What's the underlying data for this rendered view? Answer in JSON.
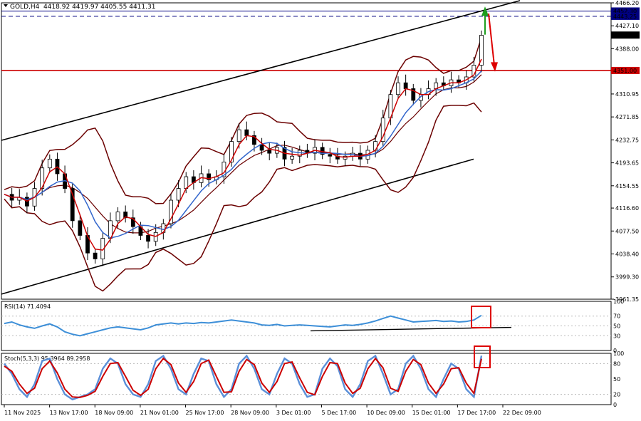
{
  "header": {
    "symbol": "GOLD,H4",
    "ohlc": "4418.92 4419.97 4405.55 4411.31"
  },
  "colors": {
    "candle": "#000000",
    "ma_fast": "#cc0000",
    "ma_slow": "#3366cc",
    "bollinger": "#6b0000",
    "level": "#cc0000",
    "hline": "#000080",
    "rsi": "#3d8fd8",
    "stoch_main": "#5a8fd8",
    "stoch_signal": "#cc0000",
    "highlight": "#dd0000"
  },
  "chart_data": [
    {
      "type": "line",
      "name": "price",
      "y_ticks": [
        "4466.20",
        "4427.10",
        "4388.00",
        "4310.95",
        "4271.85",
        "4232.75",
        "4193.65",
        "4154.55",
        "4116.60",
        "4077.50",
        "4038.40",
        "3999.30",
        "3961.35"
      ],
      "ylim": [
        3961.35,
        4466.2
      ],
      "x_ticks": [
        "11 Nov 2025",
        "13 Nov 17:00",
        "18 Nov 09:00",
        "21 Nov 01:00",
        "25 Nov 17:00",
        "28 Nov 09:00",
        "3 Dec 01:00",
        "5 Dec 17:00",
        "10 Dec 09:00",
        "15 Dec 01:00",
        "17 Dec 17:00",
        "22 Dec 09:00"
      ],
      "price_labels": [
        {
          "value": 4452.3,
          "text": "4452.30"
        },
        {
          "value": 4443.25,
          "text": "4443.25"
        },
        {
          "value": 4411.31,
          "text": "4411.31"
        },
        {
          "value": 4351.0,
          "text": "4351.00"
        }
      ],
      "support_level": 4351.0,
      "close_series": [
        4140,
        4130,
        4135,
        4120,
        4150,
        4185,
        4200,
        4175,
        4150,
        4095,
        4070,
        4040,
        4030,
        4065,
        4095,
        4110,
        4100,
        4085,
        4070,
        4060,
        4075,
        4090,
        4130,
        4150,
        4170,
        4160,
        4175,
        4165,
        4170,
        4195,
        4230,
        4250,
        4240,
        4225,
        4215,
        4210,
        4220,
        4200,
        4205,
        4215,
        4210,
        4220,
        4208,
        4205,
        4200,
        4205,
        4210,
        4200,
        4215,
        4230,
        4270,
        4310,
        4330,
        4320,
        4300,
        4310,
        4320,
        4330,
        4325,
        4335,
        4330,
        4340,
        4360,
        4411
      ],
      "annotations": [
        "up-arrow-green",
        "down-arrow-red",
        "ascending-channel"
      ]
    },
    {
      "type": "line",
      "name": "RSI(14)",
      "title": "RSI(14) 71.4094",
      "y_ticks": [
        "100",
        "70",
        "50",
        "30",
        "0"
      ],
      "ylim": [
        0,
        100
      ],
      "values": [
        55,
        58,
        52,
        48,
        45,
        50,
        54,
        48,
        38,
        33,
        30,
        34,
        38,
        42,
        46,
        48,
        46,
        44,
        42,
        46,
        52,
        54,
        56,
        54,
        56,
        55,
        57,
        56,
        58,
        60,
        62,
        60,
        58,
        56,
        52,
        51,
        53,
        50,
        51,
        52,
        51,
        50,
        49,
        48,
        50,
        52,
        51,
        53,
        56,
        60,
        65,
        70,
        66,
        62,
        58,
        59,
        60,
        61,
        59,
        60,
        58,
        59,
        62,
        71.4
      ]
    },
    {
      "type": "line",
      "name": "Stoch",
      "title": "Stoch(5,3,3) 95.3964 89.2958",
      "y_ticks": [
        "100",
        "80",
        "50",
        "20",
        "0"
      ],
      "ylim": [
        0,
        100
      ],
      "main": [
        80,
        60,
        30,
        15,
        40,
        85,
        90,
        50,
        20,
        10,
        15,
        20,
        30,
        70,
        90,
        80,
        40,
        20,
        15,
        40,
        85,
        95,
        70,
        30,
        20,
        60,
        90,
        85,
        40,
        15,
        30,
        80,
        95,
        70,
        30,
        20,
        60,
        90,
        80,
        40,
        15,
        20,
        70,
        90,
        75,
        30,
        15,
        40,
        85,
        95,
        60,
        20,
        30,
        80,
        95,
        70,
        30,
        15,
        50,
        80,
        70,
        30,
        15,
        95.4
      ],
      "signal": [
        75,
        65,
        40,
        22,
        32,
        70,
        85,
        62,
        30,
        15,
        14,
        18,
        26,
        55,
        80,
        82,
        55,
        28,
        18,
        30,
        70,
        90,
        78,
        42,
        24,
        45,
        80,
        87,
        55,
        24,
        25,
        65,
        88,
        78,
        42,
        24,
        45,
        80,
        83,
        52,
        24,
        19,
        55,
        82,
        80,
        42,
        22,
        32,
        70,
        90,
        72,
        32,
        26,
        65,
        88,
        78,
        42,
        22,
        40,
        70,
        72,
        42,
        22,
        89.3
      ]
    }
  ]
}
